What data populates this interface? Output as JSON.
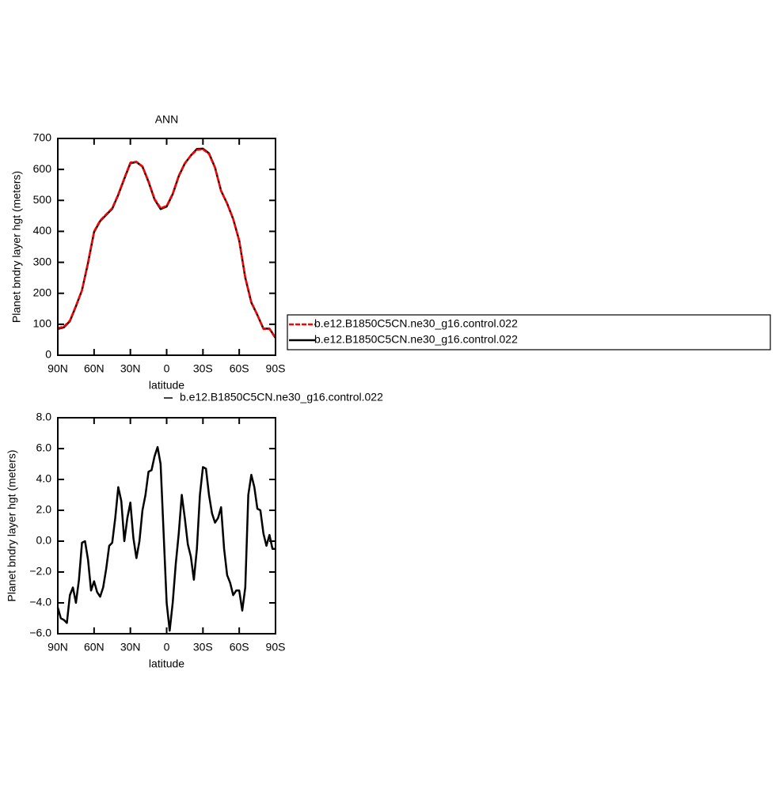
{
  "chart_data": [
    {
      "type": "line",
      "title": "ANN",
      "xlabel": "latitude",
      "ylabel": "Planet bndry layer hgt (meters)",
      "x": [
        90,
        85,
        80,
        75,
        70,
        65,
        60,
        55,
        50,
        45,
        40,
        35,
        30,
        25,
        20,
        15,
        10,
        5,
        0,
        -5,
        -10,
        -15,
        -20,
        -25,
        -30,
        -35,
        -40,
        -45,
        -50,
        -55,
        -60,
        -65,
        -70,
        -75,
        -80,
        -85,
        -90
      ],
      "series": [
        {
          "name": "b.e12.B1850C5CN.ne30_g16.control.022",
          "color": "#ff0000",
          "dash": true,
          "values": [
            88,
            92,
            112,
            160,
            210,
            300,
            400,
            435,
            455,
            475,
            520,
            572,
            622,
            625,
            610,
            562,
            505,
            475,
            482,
            522,
            580,
            620,
            645,
            663,
            665,
            650,
            605,
            530,
            490,
            440,
            370,
            252,
            172,
            130,
            85,
            85,
            55
          ]
        },
        {
          "name": "b.e12.B1850C5CN.ne30_g16.control.022",
          "color": "#000000",
          "dash": false,
          "values": [
            85,
            90,
            110,
            158,
            210,
            298,
            398,
            433,
            453,
            473,
            518,
            570,
            620,
            624,
            609,
            560,
            503,
            472,
            480,
            520,
            578,
            619,
            645,
            666,
            667,
            652,
            606,
            531,
            490,
            440,
            370,
            250,
            170,
            130,
            86,
            86,
            56
          ]
        }
      ],
      "xlim": [
        90,
        -90
      ],
      "xticks": [
        {
          "value": 90,
          "label": "90N"
        },
        {
          "value": 60,
          "label": "60N"
        },
        {
          "value": 30,
          "label": "30N"
        },
        0,
        {
          "value": -30,
          "label": "30S"
        },
        {
          "value": -60,
          "label": "60S"
        },
        {
          "value": -90,
          "label": "90S"
        }
      ],
      "ylim": [
        0,
        700
      ],
      "yticks": [
        0,
        100,
        200,
        300,
        400,
        500,
        600,
        700
      ],
      "legend": "right"
    },
    {
      "type": "line",
      "xlabel": "latitude",
      "ylabel": "Planet bndry layer hgt (meters)",
      "x": [
        90,
        87.5,
        85,
        82.5,
        80,
        77.5,
        75,
        72.5,
        70,
        67.5,
        65,
        62.5,
        60,
        57.5,
        55,
        52.5,
        50,
        47.5,
        45,
        42.5,
        40,
        37.5,
        35,
        32.5,
        30,
        27.5,
        25,
        22.5,
        20,
        17.5,
        15,
        12.5,
        10,
        7.5,
        5,
        2.5,
        0,
        -2.5,
        -5,
        -7.5,
        -10,
        -12.5,
        -15,
        -17.5,
        -20,
        -22.5,
        -25,
        -27.5,
        -30,
        -32.5,
        -35,
        -37.5,
        -40,
        -42.5,
        -45,
        -47.5,
        -50,
        -52.5,
        -55,
        -57.5,
        -60,
        -62.5,
        -65,
        -67.5,
        -70,
        -72.5,
        -75,
        -77.5,
        -80,
        -82.5,
        -85,
        -87.5,
        -90
      ],
      "series": [
        {
          "name": "b.e12.B1850C5CN.ne30_g16.control.022",
          "color": "#000000",
          "dash": false,
          "values": [
            -4.3,
            -5.0,
            -5.1,
            -5.3,
            -3.5,
            -3.0,
            -4.0,
            -2.5,
            -0.1,
            0.0,
            -1.2,
            -3.2,
            -2.6,
            -3.3,
            -3.6,
            -3.0,
            -1.8,
            -0.3,
            -0.1,
            1.5,
            3.5,
            2.6,
            0.0,
            1.5,
            2.5,
            0.2,
            -1.1,
            0.0,
            2.0,
            3.0,
            4.5,
            4.6,
            5.5,
            6.1,
            5.0,
            0.5,
            -4.0,
            -5.8,
            -4.0,
            -1.5,
            0.5,
            3.0,
            1.5,
            -0.2,
            -1.0,
            -2.5,
            -0.5,
            3.0,
            4.8,
            4.7,
            3.0,
            1.8,
            1.2,
            1.5,
            2.2,
            -0.5,
            -2.2,
            -2.7,
            -3.5,
            -3.2,
            -3.2,
            -4.5,
            -3.0,
            3.0,
            4.3,
            3.5,
            2.1,
            2.0,
            0.5,
            -0.3,
            0.4,
            -0.5,
            -0.5
          ]
        }
      ],
      "xlim": [
        90,
        -90
      ],
      "xticks": [
        {
          "value": 90,
          "label": "90N"
        },
        {
          "value": 60,
          "label": "60N"
        },
        {
          "value": 30,
          "label": "30N"
        },
        0,
        {
          "value": -30,
          "label": "30S"
        },
        {
          "value": -60,
          "label": "60S"
        },
        {
          "value": -90,
          "label": "90S"
        }
      ],
      "ylim": [
        -6,
        8
      ],
      "yticks": [
        {
          "value": -6,
          "label": "−6.0"
        },
        {
          "value": -4,
          "label": "−4.0"
        },
        {
          "value": -2,
          "label": "−2.0"
        },
        {
          "value": 0,
          "label": "0.0"
        },
        {
          "value": 2,
          "label": "2.0"
        },
        {
          "value": 4,
          "label": "4.0"
        },
        {
          "value": 6,
          "label": "6.0"
        },
        {
          "value": 8,
          "label": "8.0"
        }
      ],
      "legend": "top"
    }
  ]
}
